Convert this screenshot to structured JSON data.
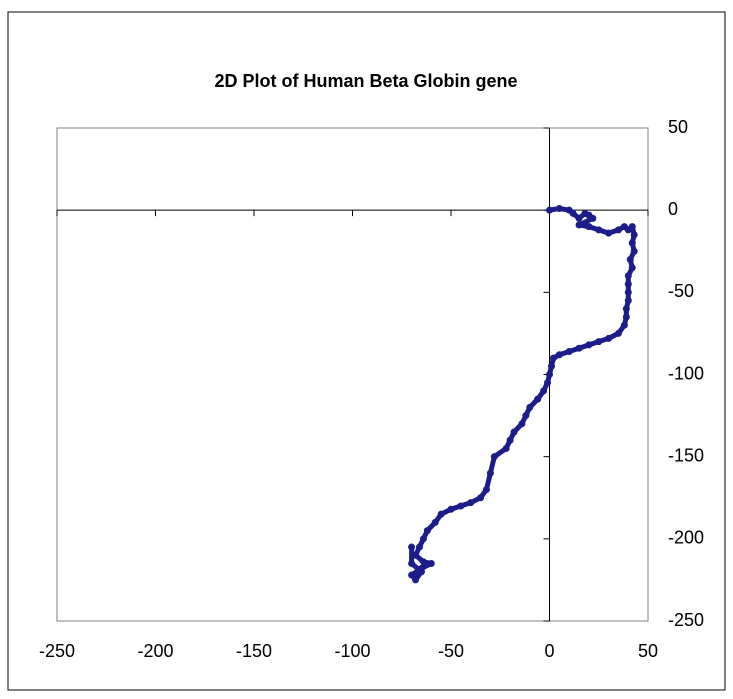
{
  "chart_data": {
    "type": "scatter",
    "title": "2D Plot of Human Beta Globin gene",
    "series": [
      {
        "color": "#1c1c8a",
        "x": [
          0,
          5,
          10,
          12,
          15,
          18,
          20,
          22,
          15,
          20,
          25,
          30,
          35,
          38,
          40,
          42,
          43,
          42,
          43,
          41,
          42,
          40,
          40,
          40,
          40,
          39,
          39,
          38,
          35,
          30,
          25,
          20,
          15,
          10,
          5,
          2,
          1,
          0,
          -1,
          -3,
          -6,
          -10,
          -12,
          -14,
          -18,
          -20,
          -22,
          -28,
          -30,
          -32,
          -35,
          -40,
          -45,
          -50,
          -55,
          -58,
          -62,
          -64,
          -66,
          -68,
          -64,
          -60,
          -65,
          -70,
          -68,
          -65,
          -70,
          -70
        ],
        "values": [
          0,
          1,
          0,
          -2,
          -5,
          -2,
          -3,
          -5,
          -9,
          -10,
          -12,
          -14,
          -12,
          -10,
          -12,
          -10,
          -15,
          -20,
          -25,
          -30,
          -35,
          -40,
          -45,
          -50,
          -55,
          -60,
          -65,
          -70,
          -75,
          -78,
          -80,
          -82,
          -84,
          -86,
          -88,
          -90,
          -95,
          -100,
          -105,
          -110,
          -115,
          -120,
          -125,
          -130,
          -135,
          -140,
          -145,
          -150,
          -160,
          -170,
          -175,
          -178,
          -180,
          -182,
          -185,
          -190,
          -195,
          -200,
          -205,
          -210,
          -214,
          -215,
          -218,
          -222,
          -225,
          -220,
          -215,
          -205
        ]
      }
    ],
    "xlim": [
      -250,
      50
    ],
    "xticks": [
      -250,
      -200,
      -150,
      -100,
      -50,
      0,
      50
    ],
    "ylim": [
      -250,
      50
    ],
    "yticks": [
      50,
      0,
      -50,
      -100,
      -150,
      -200,
      -250
    ]
  }
}
